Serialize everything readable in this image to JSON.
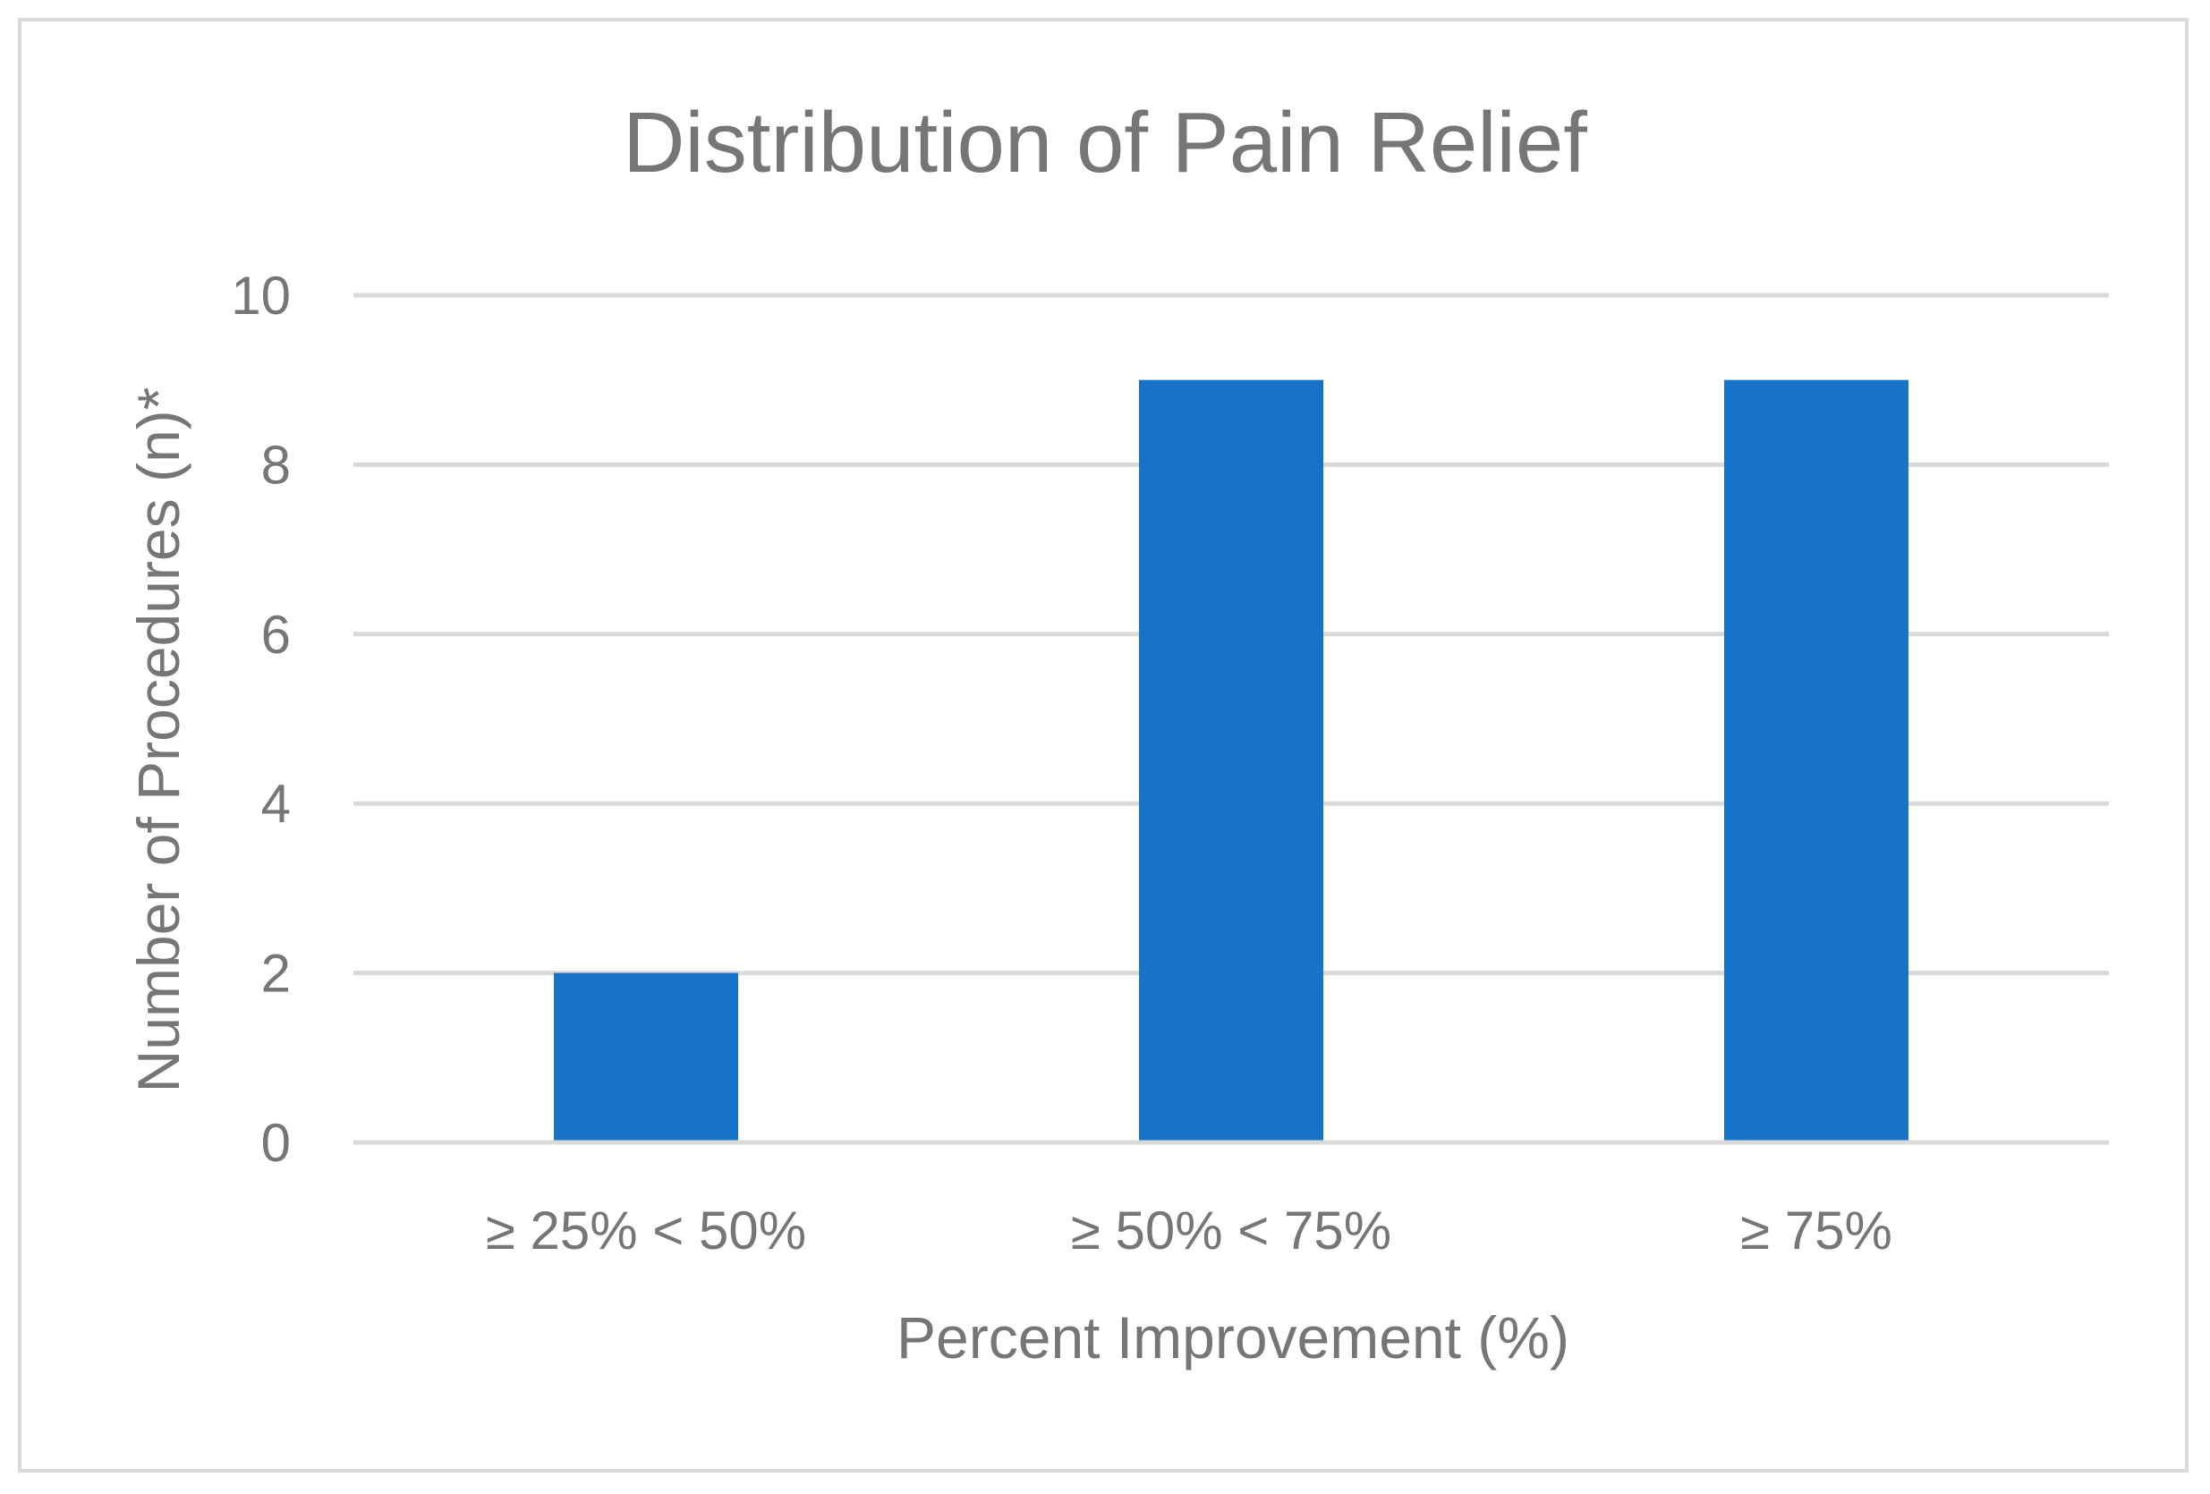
{
  "chart_data": {
    "type": "bar",
    "title": "Distribution of Pain Relief",
    "xlabel": "Percent Improvement (%)",
    "ylabel": "Number of Procedures (n)*",
    "categories": [
      "≥ 25% < 50%",
      "≥ 50% < 75%",
      "≥ 75%"
    ],
    "values": [
      2,
      9,
      9
    ],
    "ylim": [
      0,
      10
    ],
    "yticks": [
      0,
      2,
      4,
      6,
      8,
      10
    ],
    "grid": true,
    "legend": "none",
    "colors": {
      "bar": "#1872c8",
      "grid": "#d9d9d9",
      "text": "#767676"
    }
  }
}
